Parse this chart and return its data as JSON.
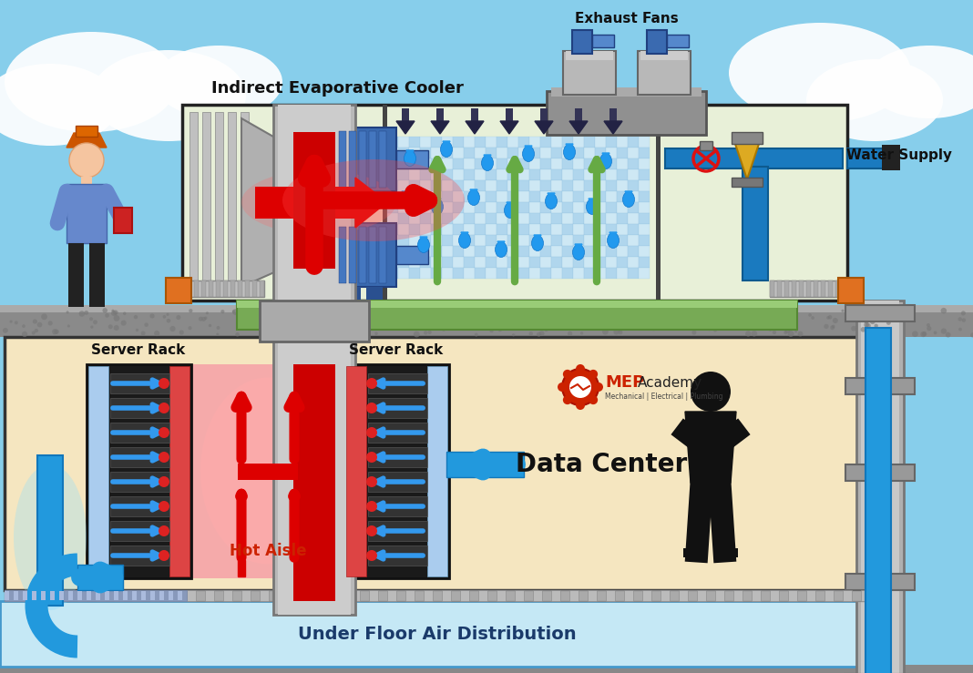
{
  "bg_sky": "#87CEEB",
  "bg_datacenter": "#f5e6c0",
  "bg_underfloor": "#c5e8f5",
  "cooler_bg": "#e8f0d8",
  "label_indirect": "Indirect Evaporative Cooler",
  "label_exhaust": "Exhaust Fans",
  "label_water": "Water Supply",
  "label_server1": "Server Rack",
  "label_server2": "Server Rack",
  "label_datacenter": "Data Center",
  "label_hotaisle": "Hot Aisle",
  "label_underfloor": "Under Floor Air Distribution",
  "red_color": "#dd0000",
  "blue_pipe": "#2288cc",
  "cyan_pipe": "#2299dd",
  "green_color": "#66aa44",
  "gray_light": "#bbbbbb",
  "gray_med": "#999999",
  "gray_dark": "#666666",
  "orange_color": "#e07020",
  "hot_aisle_color": "#f5aaaa"
}
